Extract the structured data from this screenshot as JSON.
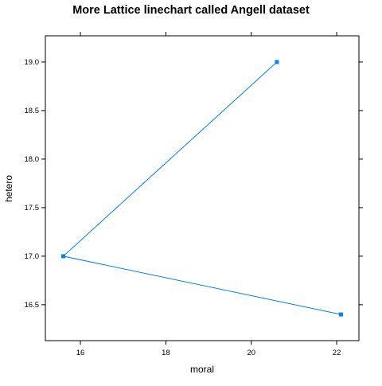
{
  "chart_data": {
    "type": "line",
    "title": "More Lattice linechart called Angell dataset",
    "xlabel": "moral",
    "ylabel": "hetero",
    "x_ticks": [
      16,
      18,
      20,
      22
    ],
    "y_ticks": [
      "16.5",
      "17.0",
      "17.5",
      "18.0",
      "18.5",
      "19.0"
    ],
    "xlim": [
      15.18,
      22.52
    ],
    "ylim": [
      16.13,
      19.27
    ],
    "grid": false,
    "legend": "none",
    "series": [
      {
        "x": [
          20.6,
          15.6,
          22.1
        ],
        "y": [
          19.0,
          17.0,
          16.4
        ],
        "color": "#0080ff"
      }
    ]
  }
}
